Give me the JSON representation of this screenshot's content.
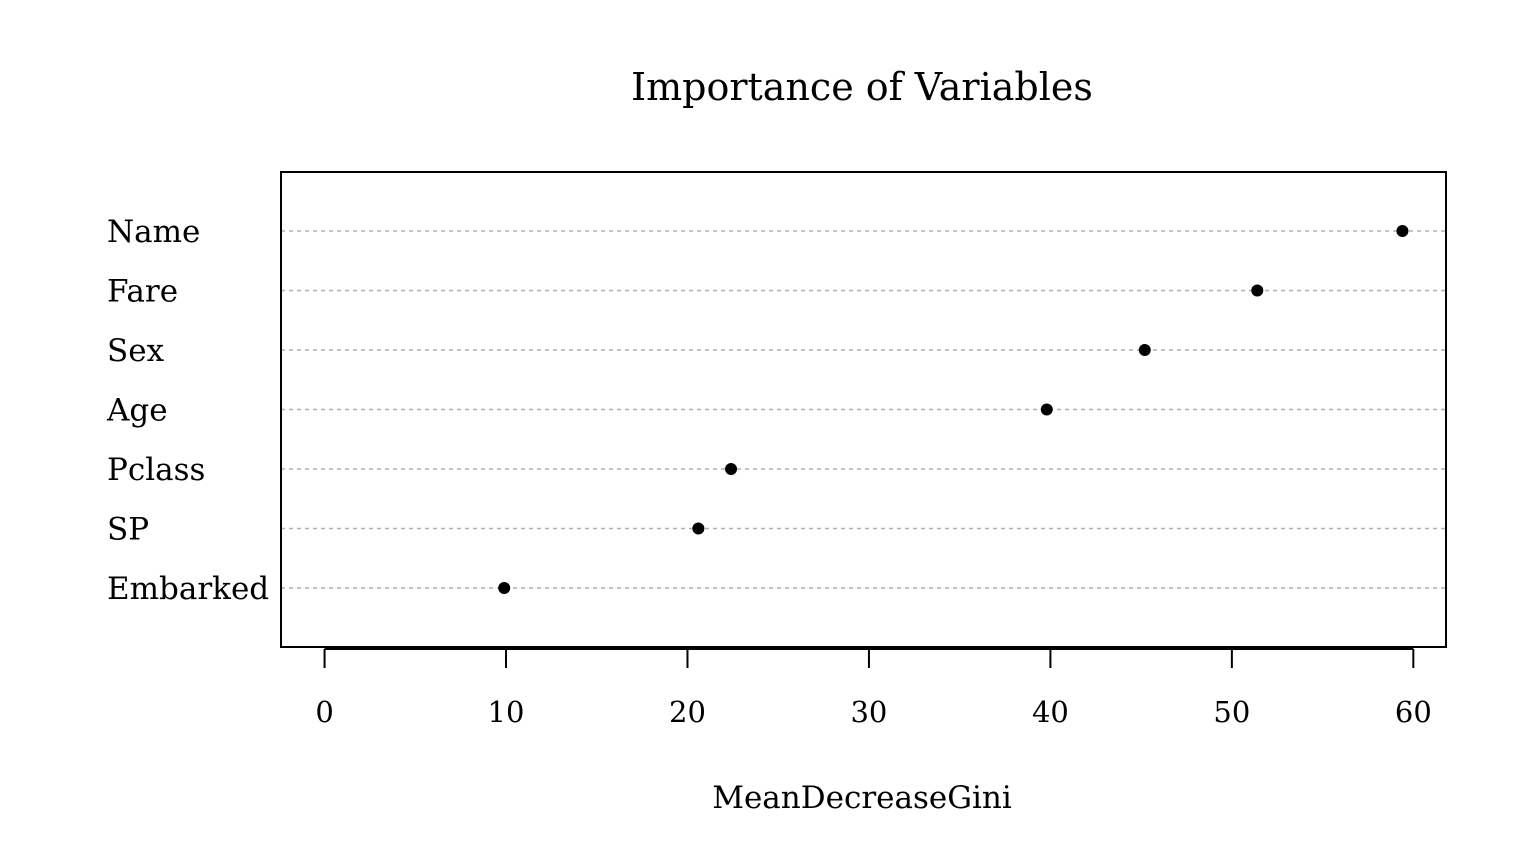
{
  "chart_data": {
    "type": "scatter",
    "subtype": "dotchart",
    "title": "Importance of Variables",
    "xlabel": "MeanDecreaseGini",
    "ylabel": "",
    "xlim": [
      -2.4,
      61.8
    ],
    "xticks": [
      0,
      10,
      20,
      30,
      40,
      50,
      60
    ],
    "grid": "dotted horizontal lines per category",
    "legend": "none",
    "point_color": "#000000",
    "grid_color": "#b0b0b0",
    "categories": [
      "Name",
      "Fare",
      "Sex",
      "Age",
      "Pclass",
      "SP",
      "Embarked"
    ],
    "values": [
      59.4,
      51.4,
      45.2,
      39.8,
      22.4,
      20.6,
      9.9
    ]
  }
}
